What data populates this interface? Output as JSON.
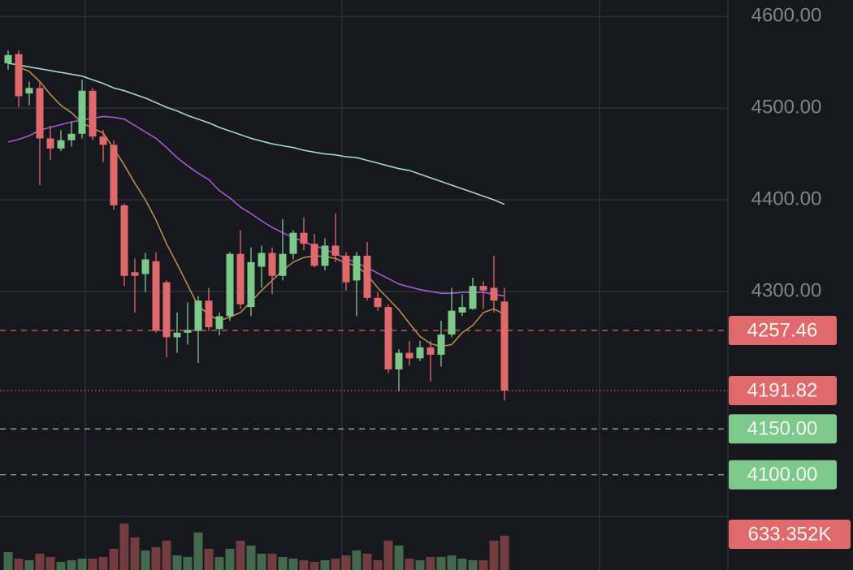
{
  "chart_data": {
    "type": "candlestick",
    "up_color": "#7dc98c",
    "down_color": "#e06a6b",
    "grid": true,
    "ylim": [
      4051,
      4618
    ],
    "yticks": [
      {
        "value": 4600,
        "label": "4600.00"
      },
      {
        "value": 4500,
        "label": "4500.00"
      },
      {
        "value": 4400,
        "label": "4400.00"
      },
      {
        "value": 4300,
        "label": "4300.00"
      }
    ],
    "open": [
      4549,
      4559,
      4516,
      4522,
      4467,
      4456,
      4465,
      4472,
      4519,
      4469,
      4460,
      4394,
      4321,
      4319,
      4333,
      4310,
      4250,
      4255,
      4257,
      4290,
      4259,
      4273,
      4341,
      4283,
      4327,
      4342,
      4317,
      4341,
      4364,
      4352,
      4328,
      4350,
      4339,
      4312,
      4339,
      4293,
      4283,
      4215,
      4233,
      4227,
      4239,
      4231,
      4253,
      4277,
      4281,
      4306,
      4304,
      4289
    ],
    "high": [
      4563,
      4563,
      4529,
      4529,
      4481,
      4476,
      4485,
      4531,
      4522,
      4476,
      4465,
      4396,
      4336,
      4342,
      4343,
      4312,
      4277,
      4288,
      4295,
      4304,
      4277,
      4343,
      4367,
      4348,
      4350,
      4348,
      4379,
      4367,
      4381,
      4363,
      4358,
      4385,
      4343,
      4343,
      4354,
      4299,
      4286,
      4237,
      4246,
      4246,
      4246,
      4268,
      4304,
      4297,
      4315,
      4311,
      4339,
      4304
    ],
    "low": [
      4542,
      4501,
      4503,
      4416,
      4443,
      4453,
      4458,
      4467,
      4465,
      4441,
      4389,
      4306,
      4277,
      4299,
      4255,
      4228,
      4233,
      4242,
      4222,
      4257,
      4252,
      4268,
      4281,
      4273,
      4304,
      4297,
      4312,
      4335,
      4345,
      4326,
      4323,
      4332,
      4301,
      4273,
      4290,
      4279,
      4211,
      4191,
      4219,
      4224,
      4202,
      4218,
      4250,
      4273,
      4280,
      4281,
      4277,
      4181
    ],
    "close": [
      4558,
      4513,
      4522,
      4467,
      4456,
      4465,
      4472,
      4519,
      4469,
      4460,
      4394,
      4317,
      4317,
      4335,
      4257,
      4250,
      4255,
      4258,
      4290,
      4261,
      4273,
      4341,
      4286,
      4332,
      4342,
      4317,
      4341,
      4364,
      4352,
      4328,
      4350,
      4339,
      4310,
      4339,
      4293,
      4283,
      4215,
      4233,
      4227,
      4239,
      4231,
      4253,
      4279,
      4283,
      4306,
      4301,
      4290,
      4191.82
    ],
    "moving_averages": [
      {
        "color": "#a3d6cb",
        "values": [
          4549,
          4547,
          4545,
          4543,
          4541,
          4539,
          4537,
          4535,
          4531,
          4527,
          4522,
          4519,
          4515,
          4511,
          4506,
          4501,
          4497,
          4492,
          4488,
          4484,
          4479,
          4475,
          4471,
          4467,
          4464,
          4461,
          4459,
          4457,
          4454,
          4452,
          4450,
          4449,
          4447,
          4446,
          4443,
          4440,
          4437,
          4434,
          4432,
          4428,
          4424,
          4420,
          4416,
          4412,
          4408,
          4404,
          4400,
          4395
        ]
      },
      {
        "color": "#a957d6",
        "values": [
          4463,
          4466,
          4470,
          4476,
          4479,
          4482,
          4485,
          4487,
          4489,
          4491,
          4490,
          4488,
          4481,
          4474,
          4467,
          4457,
          4446,
          4437,
          4429,
          4422,
          4410,
          4402,
          4392,
          4385,
          4377,
          4370,
          4364,
          4359,
          4354,
          4350,
          4346,
          4341,
          4336,
          4331,
          4326,
          4320,
          4314,
          4308,
          4305,
          4302,
          4300,
          4298,
          4298,
          4299,
          4299,
          4299,
          4297,
          4295
        ]
      },
      {
        "color": "#b98a4c",
        "values": [
          null,
          4545,
          4540,
          4529,
          4515,
          4503,
          4495,
          4484,
          4478,
          4473,
          4456,
          4438,
          4418,
          4400,
          4378,
          4352,
          4330,
          4307,
          4284,
          4275,
          4268,
          4272,
          4277,
          4289,
          4301,
          4312,
          4323,
          4332,
          4337,
          4339,
          4338,
          4336,
          4331,
          4328,
          4318,
          4304,
          4292,
          4280,
          4265,
          4251,
          4243,
          4240,
          4242,
          4255,
          4263,
          4277,
          4281,
          4275
        ]
      }
    ],
    "volume": {
      "ylim": [
        0,
        1500
      ],
      "values": [
        332,
        211,
        181,
        302,
        241,
        151,
        181,
        211,
        211,
        241,
        392,
        860,
        603,
        362,
        422,
        543,
        271,
        241,
        694,
        392,
        241,
        392,
        543,
        452,
        302,
        302,
        241,
        211,
        181,
        151,
        181,
        211,
        271,
        362,
        302,
        181,
        543,
        452,
        211,
        181,
        241,
        241,
        271,
        211,
        181,
        181,
        543,
        633.352
      ],
      "value_labels": [
        null,
        null,
        null,
        null,
        null,
        null,
        null,
        null,
        null,
        null,
        null,
        null,
        null,
        null,
        null,
        null,
        null,
        null,
        null,
        null,
        null,
        null,
        null,
        null,
        null,
        null,
        null,
        null,
        null,
        null,
        null,
        null,
        null,
        null,
        null,
        null,
        null,
        null,
        null,
        null,
        null,
        null,
        null,
        null,
        null,
        null,
        null,
        "633.352K"
      ]
    },
    "price_lines": [
      {
        "value": 4257.46,
        "color": "#e06a6b",
        "style": "dashed"
      },
      {
        "value": 4191.82,
        "color": "#e06a6b",
        "style": "dotted"
      },
      {
        "value": 4150,
        "label": "4150.00",
        "color": "#7dc98c",
        "style": "dashed"
      },
      {
        "value": 4100,
        "label": "4100.00",
        "color": "#7dc98c",
        "style": "dashed"
      }
    ]
  }
}
